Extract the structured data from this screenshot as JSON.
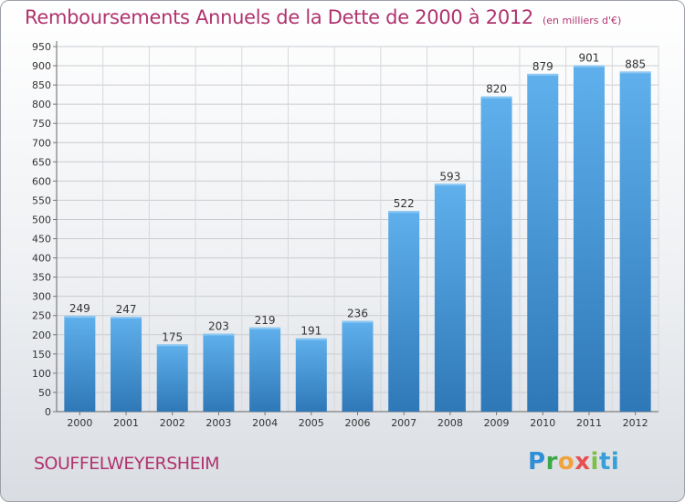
{
  "header": {
    "title": "Remboursements Annuels de la Dette de 2000 à 2012",
    "subtitle": "(en milliers d'€)"
  },
  "footer": {
    "commune": "SOUFFELWEYERSHEIM",
    "logo_text": "Proxiti"
  },
  "colors": {
    "title": "#b0336e",
    "bar_top": "#5fb0ec",
    "bar_bottom": "#2f78b8"
  },
  "chart_data": {
    "type": "bar",
    "title": "Remboursements Annuels de la Dette de 2000 à 2012",
    "subtitle": "(en milliers d'€)",
    "xlabel": "",
    "ylabel": "",
    "categories": [
      "2000",
      "2001",
      "2002",
      "2003",
      "2004",
      "2005",
      "2006",
      "2007",
      "2008",
      "2009",
      "2010",
      "2011",
      "2012"
    ],
    "values": [
      249,
      247,
      175,
      203,
      219,
      191,
      236,
      522,
      593,
      820,
      879,
      901,
      885
    ],
    "ylim": [
      0,
      950
    ],
    "ytick_step": 50,
    "grid": true,
    "legend": "none"
  }
}
